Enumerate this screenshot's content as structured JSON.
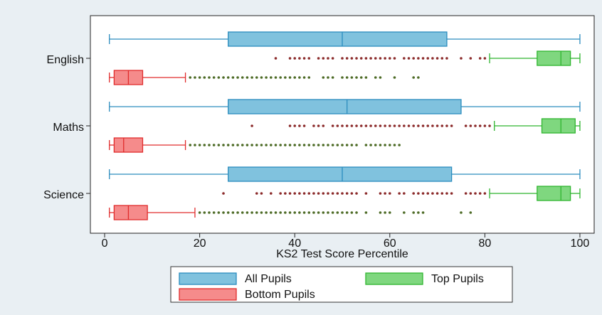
{
  "chart_data": {
    "type": "box",
    "categories": [
      "English",
      "Maths",
      "Science"
    ],
    "xlabel": "KS2 Test Score Percentile",
    "xlim": [
      -3,
      103
    ],
    "xticks": [
      0,
      20,
      40,
      60,
      80,
      100
    ],
    "series": [
      {
        "name": "All Pupils",
        "color": "#80c2de",
        "stroke": "#2b8cbe",
        "outlier_color": "#8b2a2a",
        "boxes": [
          {
            "whislo": 1,
            "q1": 26,
            "med": 50,
            "q3": 72,
            "whishi": 100,
            "fliers": []
          },
          {
            "whislo": 1,
            "q1": 26,
            "med": 51,
            "q3": 75,
            "whishi": 100,
            "fliers": []
          },
          {
            "whislo": 1,
            "q1": 26,
            "med": 50,
            "q3": 73,
            "whishi": 100,
            "fliers": []
          }
        ]
      },
      {
        "name": "Top Pupils",
        "color": "#7fd77f",
        "stroke": "#2fb52f",
        "outlier_color": "#8b2a2a",
        "boxes": [
          {
            "whislo": 81,
            "q1": 91,
            "med": 96,
            "q3": 98,
            "whishi": 100,
            "fliers": [
              36,
              39,
              40,
              41,
              42,
              43,
              45,
              46,
              47,
              48,
              50,
              51,
              52,
              53,
              54,
              55,
              56,
              57,
              58,
              59,
              60,
              61,
              63,
              64,
              65,
              66,
              67,
              68,
              69,
              70,
              71,
              72,
              75,
              77,
              79,
              80
            ]
          },
          {
            "whislo": 82,
            "q1": 92,
            "med": 96,
            "q3": 99,
            "whishi": 100,
            "fliers": [
              31,
              39,
              40,
              41,
              42,
              44,
              45,
              46,
              48,
              49,
              50,
              51,
              52,
              53,
              54,
              55,
              56,
              57,
              58,
              59,
              60,
              61,
              62,
              63,
              64,
              65,
              66,
              67,
              68,
              69,
              70,
              71,
              72,
              73,
              76,
              77,
              78,
              79,
              80,
              81
            ]
          },
          {
            "whislo": 81,
            "q1": 91,
            "med": 96,
            "q3": 98,
            "whishi": 100,
            "fliers": [
              25,
              32,
              33,
              35,
              37,
              38,
              39,
              40,
              41,
              42,
              43,
              44,
              45,
              46,
              47,
              48,
              49,
              50,
              51,
              52,
              53,
              55,
              58,
              59,
              60,
              62,
              63,
              65,
              66,
              67,
              68,
              69,
              70,
              71,
              72,
              73,
              76,
              77,
              78,
              79,
              80
            ]
          }
        ]
      },
      {
        "name": "Bottom Pupils",
        "color": "#f58b8b",
        "stroke": "#e02c2c",
        "outlier_color": "#4d6b26",
        "boxes": [
          {
            "whislo": 1,
            "q1": 2,
            "med": 5,
            "q3": 8,
            "whishi": 17,
            "fliers": [
              18,
              19,
              20,
              21,
              22,
              23,
              24,
              25,
              26,
              27,
              28,
              29,
              30,
              31,
              32,
              33,
              34,
              35,
              36,
              37,
              38,
              39,
              40,
              41,
              42,
              43,
              46,
              47,
              48,
              50,
              51,
              52,
              53,
              54,
              55,
              57,
              58,
              61,
              65,
              66
            ]
          },
          {
            "whislo": 1,
            "q1": 2,
            "med": 4,
            "q3": 8,
            "whishi": 17,
            "fliers": [
              18,
              19,
              20,
              21,
              22,
              23,
              24,
              25,
              26,
              27,
              28,
              29,
              30,
              31,
              32,
              33,
              34,
              35,
              36,
              37,
              38,
              39,
              40,
              41,
              42,
              43,
              44,
              45,
              46,
              47,
              48,
              49,
              50,
              51,
              52,
              53,
              55,
              56,
              57,
              58,
              59,
              60,
              61,
              62
            ]
          },
          {
            "whislo": 1,
            "q1": 2,
            "med": 5,
            "q3": 9,
            "whishi": 19,
            "fliers": [
              20,
              21,
              22,
              23,
              24,
              25,
              26,
              27,
              28,
              29,
              30,
              31,
              32,
              33,
              34,
              35,
              36,
              37,
              38,
              39,
              40,
              41,
              42,
              43,
              44,
              45,
              46,
              47,
              48,
              49,
              50,
              51,
              52,
              53,
              55,
              58,
              59,
              60,
              63,
              65,
              66,
              67,
              75,
              77
            ]
          }
        ]
      }
    ]
  }
}
